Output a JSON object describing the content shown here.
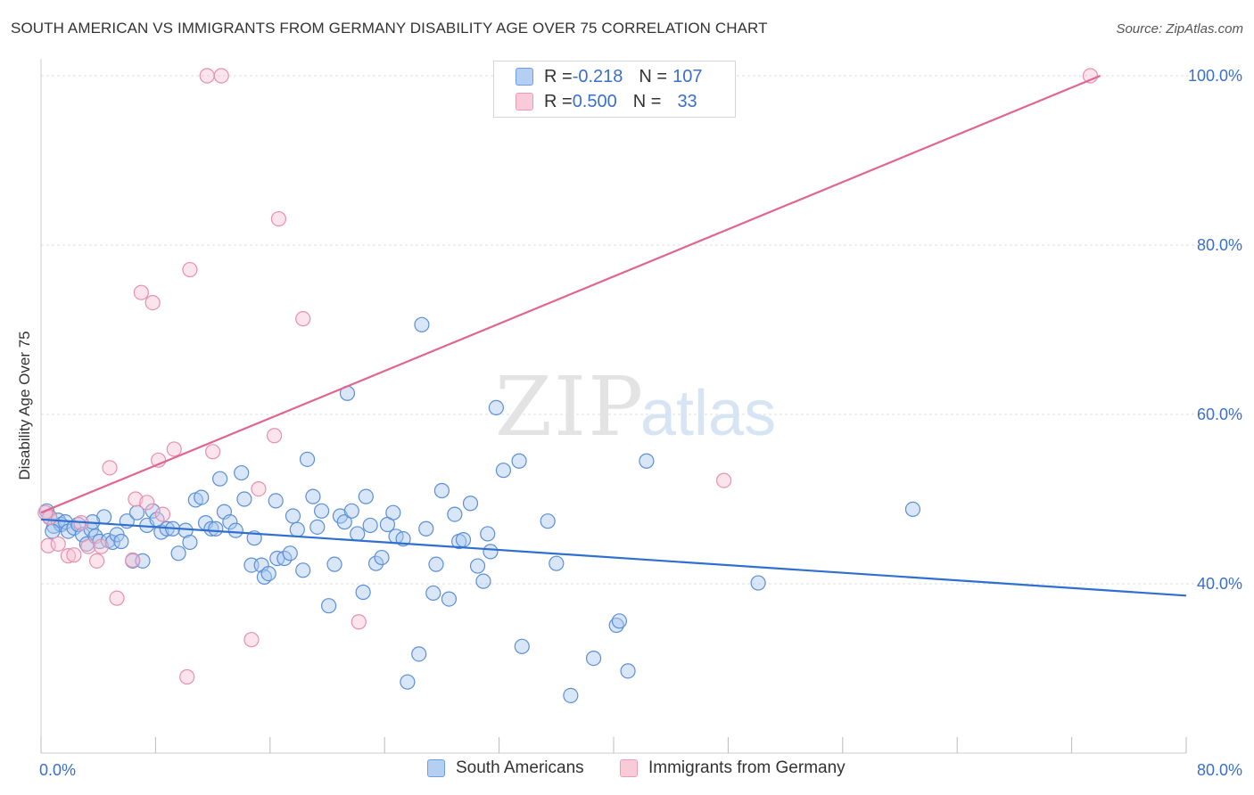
{
  "header": {
    "title": "SOUTH AMERICAN VS IMMIGRANTS FROM GERMANY DISABILITY AGE OVER 75 CORRELATION CHART",
    "source": "Source: ZipAtlas.com"
  },
  "watermark": {
    "zip": "ZIP",
    "atlas": "atlas"
  },
  "legend_top": {
    "rows": [
      {
        "r_label": "R = ",
        "r_value": "-0.218",
        "n_label": "N = ",
        "n_value": "107"
      },
      {
        "r_label": "R = ",
        "r_value": "0.500",
        "n_label": "N = ",
        "n_value": "33"
      }
    ]
  },
  "legend_bottom": {
    "items": [
      {
        "label": "South Americans"
      },
      {
        "label": "Immigrants from Germany"
      }
    ]
  },
  "colors": {
    "blue_fill": "#a9c8f0",
    "blue_stroke": "#5b8fd6",
    "blue_line": "#2f6fce",
    "pink_fill": "#f8c3d4",
    "pink_stroke": "#e890ac",
    "pink_line": "#e0668f",
    "tick_label": "#3a6fcc"
  },
  "chart_data": {
    "type": "scatter",
    "title": "SOUTH AMERICAN VS IMMIGRANTS FROM GERMANY DISABILITY AGE OVER 75 CORRELATION CHART",
    "xlabel": "",
    "ylabel": "Disability Age Over 75",
    "xlim": [
      0,
      80
    ],
    "ylim": [
      20,
      102
    ],
    "x_tick_labels": [
      {
        "value": 0,
        "label": "0.0%"
      },
      {
        "value": 80,
        "label": "80.0%"
      }
    ],
    "y_tick_labels": [
      {
        "value": 40,
        "label": "40.0%"
      },
      {
        "value": 60,
        "label": "60.0%"
      },
      {
        "value": 80,
        "label": "80.0%"
      },
      {
        "value": 100,
        "label": "100.0%"
      }
    ],
    "grid": true,
    "legend_placement": "bottom",
    "series": [
      {
        "name": "South Americans",
        "color": "#5b8fd6",
        "r": -0.218,
        "n": 107,
        "trend": {
          "x": [
            0,
            80
          ],
          "y": [
            47.6,
            38.6
          ]
        },
        "points": [
          [
            0.4,
            48.6
          ],
          [
            0.6,
            47.9
          ],
          [
            0.9,
            46.8
          ],
          [
            1.2,
            47.5
          ],
          [
            1.4,
            47.0
          ],
          [
            1.7,
            47.3
          ],
          [
            1.9,
            46.2
          ],
          [
            2.3,
            46.6
          ],
          [
            2.6,
            47.0
          ],
          [
            2.9,
            45.8
          ],
          [
            3.2,
            44.7
          ],
          [
            3.5,
            46.4
          ],
          [
            3.8,
            45.6
          ],
          [
            4.1,
            45.0
          ],
          [
            4.4,
            47.9
          ],
          [
            4.7,
            45.1
          ],
          [
            5.0,
            44.9
          ],
          [
            5.3,
            45.8
          ],
          [
            5.6,
            45.0
          ],
          [
            6.0,
            47.4
          ],
          [
            6.4,
            42.7
          ],
          [
            6.7,
            48.4
          ],
          [
            7.1,
            42.7
          ],
          [
            7.4,
            46.9
          ],
          [
            7.8,
            48.6
          ],
          [
            8.1,
            47.6
          ],
          [
            8.4,
            46.1
          ],
          [
            8.8,
            46.5
          ],
          [
            9.2,
            46.5
          ],
          [
            9.6,
            43.6
          ],
          [
            10.1,
            46.3
          ],
          [
            10.4,
            44.9
          ],
          [
            10.8,
            49.9
          ],
          [
            11.2,
            50.2
          ],
          [
            11.5,
            47.2
          ],
          [
            11.9,
            46.5
          ],
          [
            12.2,
            46.5
          ],
          [
            12.5,
            52.4
          ],
          [
            12.8,
            48.5
          ],
          [
            13.2,
            47.3
          ],
          [
            13.6,
            46.3
          ],
          [
            14.0,
            53.1
          ],
          [
            14.2,
            50.0
          ],
          [
            14.7,
            42.2
          ],
          [
            14.9,
            45.4
          ],
          [
            15.4,
            42.2
          ],
          [
            15.6,
            40.8
          ],
          [
            15.9,
            41.2
          ],
          [
            16.4,
            49.8
          ],
          [
            16.5,
            43.0
          ],
          [
            17.0,
            43.0
          ],
          [
            17.4,
            43.6
          ],
          [
            17.6,
            48.0
          ],
          [
            17.9,
            46.4
          ],
          [
            18.3,
            41.6
          ],
          [
            18.6,
            54.7
          ],
          [
            19.0,
            50.3
          ],
          [
            19.3,
            46.7
          ],
          [
            19.6,
            48.6
          ],
          [
            20.1,
            37.4
          ],
          [
            20.5,
            42.3
          ],
          [
            20.9,
            48.0
          ],
          [
            21.2,
            47.3
          ],
          [
            21.4,
            62.5
          ],
          [
            21.7,
            48.6
          ],
          [
            22.1,
            45.9
          ],
          [
            22.5,
            39.0
          ],
          [
            22.7,
            50.3
          ],
          [
            23.0,
            46.9
          ],
          [
            23.4,
            42.4
          ],
          [
            23.8,
            43.1
          ],
          [
            24.2,
            47.0
          ],
          [
            24.6,
            48.4
          ],
          [
            24.8,
            45.6
          ],
          [
            25.3,
            45.3
          ],
          [
            25.6,
            28.4
          ],
          [
            26.4,
            31.7
          ],
          [
            26.6,
            70.6
          ],
          [
            26.9,
            46.5
          ],
          [
            27.4,
            38.9
          ],
          [
            27.6,
            42.3
          ],
          [
            28.0,
            51.0
          ],
          [
            28.5,
            38.2
          ],
          [
            28.9,
            48.2
          ],
          [
            29.2,
            45.0
          ],
          [
            29.5,
            45.2
          ],
          [
            30.0,
            49.5
          ],
          [
            30.5,
            42.1
          ],
          [
            30.9,
            40.3
          ],
          [
            31.2,
            45.9
          ],
          [
            31.4,
            43.8
          ],
          [
            31.8,
            60.8
          ],
          [
            32.3,
            53.4
          ],
          [
            33.4,
            54.5
          ],
          [
            33.6,
            32.6
          ],
          [
            35.4,
            47.4
          ],
          [
            36.0,
            42.4
          ],
          [
            37.0,
            26.8
          ],
          [
            38.6,
            31.2
          ],
          [
            40.2,
            35.1
          ],
          [
            40.4,
            35.6
          ],
          [
            41.0,
            29.7
          ],
          [
            42.3,
            54.5
          ],
          [
            60.9,
            48.8
          ],
          [
            50.1,
            40.1
          ],
          [
            0.8,
            46.2
          ],
          [
            3.6,
            47.3
          ]
        ]
      },
      {
        "name": "Immigrants from Germany",
        "color": "#e890ac",
        "r": 0.5,
        "n": 33,
        "trend": {
          "x": [
            0,
            74
          ],
          "y": [
            48.4,
            100
          ]
        },
        "points": [
          [
            0.5,
            44.5
          ],
          [
            0.6,
            47.8
          ],
          [
            1.2,
            44.7
          ],
          [
            1.9,
            43.3
          ],
          [
            2.3,
            43.4
          ],
          [
            2.8,
            47.2
          ],
          [
            3.3,
            44.4
          ],
          [
            3.9,
            42.7
          ],
          [
            4.2,
            44.4
          ],
          [
            4.8,
            53.7
          ],
          [
            5.3,
            38.3
          ],
          [
            6.4,
            42.8
          ],
          [
            6.6,
            50.0
          ],
          [
            7.0,
            74.4
          ],
          [
            7.4,
            49.6
          ],
          [
            7.8,
            73.2
          ],
          [
            8.2,
            54.6
          ],
          [
            8.5,
            48.2
          ],
          [
            9.3,
            55.9
          ],
          [
            10.2,
            29.0
          ],
          [
            10.4,
            77.1
          ],
          [
            11.6,
            100
          ],
          [
            12.0,
            55.6
          ],
          [
            12.6,
            100
          ],
          [
            14.7,
            33.4
          ],
          [
            15.2,
            51.2
          ],
          [
            16.3,
            57.5
          ],
          [
            16.6,
            83.1
          ],
          [
            18.3,
            71.3
          ],
          [
            22.2,
            35.5
          ],
          [
            47.7,
            52.2
          ],
          [
            73.3,
            100
          ],
          [
            0.3,
            48.4
          ]
        ]
      }
    ]
  }
}
